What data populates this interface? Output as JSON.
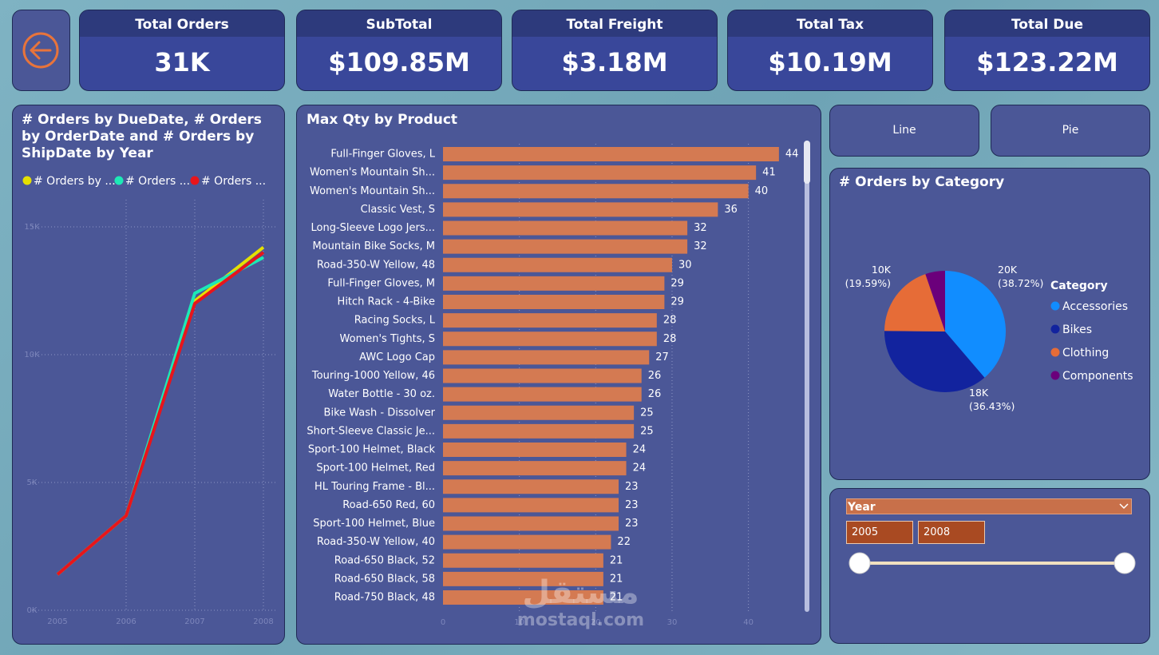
{
  "kpis": [
    {
      "title": "Total Orders",
      "value": "31K"
    },
    {
      "title": "SubTotal",
      "value": "$109.85M"
    },
    {
      "title": "Total Freight",
      "value": "$3.18M"
    },
    {
      "title": "Total Tax",
      "value": "$10.19M"
    },
    {
      "title": "Total Due",
      "value": "$123.22M"
    }
  ],
  "buttons": [
    "Line",
    "Pie"
  ],
  "slicer": {
    "title": "Year",
    "start": "2005",
    "end": "2008"
  },
  "watermark": {
    "arabic": "مستقل",
    "latin": "mostaql.com"
  },
  "chart_data": [
    {
      "type": "line",
      "title": "# Orders by DueDate, # Orders by OrderDate and # Orders by ShipDate by Year",
      "categories": [
        "2005",
        "2006",
        "2007",
        "2008"
      ],
      "series": [
        {
          "name": "# Orders by ...",
          "color": "#e5e000",
          "values": [
            1400,
            3700,
            12100,
            14200
          ]
        },
        {
          "name": "# Orders ...",
          "color": "#1de9b6",
          "values": [
            1400,
            3700,
            12400,
            13800
          ]
        },
        {
          "name": "# Orders ...",
          "color": "#e8151b",
          "values": [
            1400,
            3700,
            12000,
            14000
          ]
        }
      ],
      "ylim": [
        0,
        15000
      ],
      "yticks": [
        {
          "value": 0,
          "label": "0K"
        },
        {
          "value": 5000,
          "label": "5K"
        },
        {
          "value": 10000,
          "label": "10K"
        },
        {
          "value": 15000,
          "label": "15K"
        }
      ],
      "grid": true,
      "legend": "top"
    },
    {
      "type": "bar",
      "orientation": "horizontal",
      "title": "Max Qty by Product",
      "categories": [
        "Full-Finger Gloves, L",
        "Women's Mountain Sh...",
        "Women's Mountain Sh...",
        "Classic Vest, S",
        "Long-Sleeve Logo Jers...",
        "Mountain Bike Socks, M",
        "Road-350-W Yellow, 48",
        "Full-Finger Gloves, M",
        "Hitch Rack - 4-Bike",
        "Racing Socks, L",
        "Women's Tights, S",
        "AWC Logo Cap",
        "Touring-1000 Yellow, 46",
        "Water Bottle - 30 oz.",
        "Bike Wash - Dissolver",
        "Short-Sleeve Classic Je...",
        "Sport-100 Helmet, Black",
        "Sport-100 Helmet, Red",
        "HL Touring Frame - Bl...",
        "Road-650 Red, 60",
        "Sport-100 Helmet, Blue",
        "Road-350-W Yellow, 40",
        "Road-650 Black, 52",
        "Road-650 Black, 58",
        "Road-750 Black, 48"
      ],
      "values": [
        44,
        41,
        40,
        36,
        32,
        32,
        30,
        29,
        29,
        28,
        28,
        27,
        26,
        26,
        25,
        25,
        24,
        24,
        23,
        23,
        23,
        22,
        21,
        21,
        21
      ],
      "color": "#d47a52",
      "xlim": [
        0,
        46
      ],
      "xticks": [
        0,
        10,
        20,
        30,
        40
      ],
      "grid": true
    },
    {
      "type": "pie",
      "title": "# Orders by Category",
      "legend_title": "Category",
      "categories": [
        "Accessories",
        "Bikes",
        "Clothing",
        "Components"
      ],
      "values": [
        38.72,
        36.43,
        19.59,
        5.26
      ],
      "value_labels": [
        "20K\n(38.72%)",
        "18K\n(36.43%)",
        "10K\n(19.59%)",
        null
      ],
      "colors": [
        "#118dff",
        "#12239e",
        "#e66c37",
        "#6b007b"
      ],
      "legend": "right"
    }
  ]
}
